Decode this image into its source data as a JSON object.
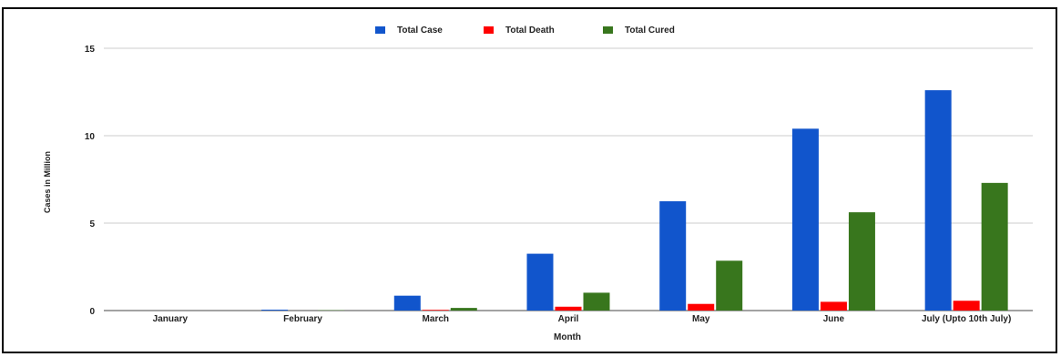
{
  "chart_data": {
    "type": "bar",
    "categories": [
      "January",
      "February",
      "March",
      "April",
      "May",
      "June",
      "July (Upto 10th July)"
    ],
    "series": [
      {
        "name": "Total Case",
        "color": "#1155cc",
        "values": [
          0.0,
          0.05,
          0.85,
          3.25,
          6.25,
          10.4,
          12.6
        ]
      },
      {
        "name": "Total Death",
        "color": "#ff0000",
        "values": [
          0.0,
          0.0,
          0.04,
          0.22,
          0.38,
          0.5,
          0.56
        ]
      },
      {
        "name": "Total Cured",
        "color": "#38761d",
        "values": [
          0.0,
          0.02,
          0.15,
          1.02,
          2.85,
          5.62,
          7.3
        ]
      }
    ],
    "xlabel": "Month",
    "ylabel": "Cases in Million",
    "ylim": [
      0,
      15
    ],
    "yticks": [
      0,
      5,
      10,
      15
    ],
    "grid": true,
    "legend_position": "top"
  }
}
